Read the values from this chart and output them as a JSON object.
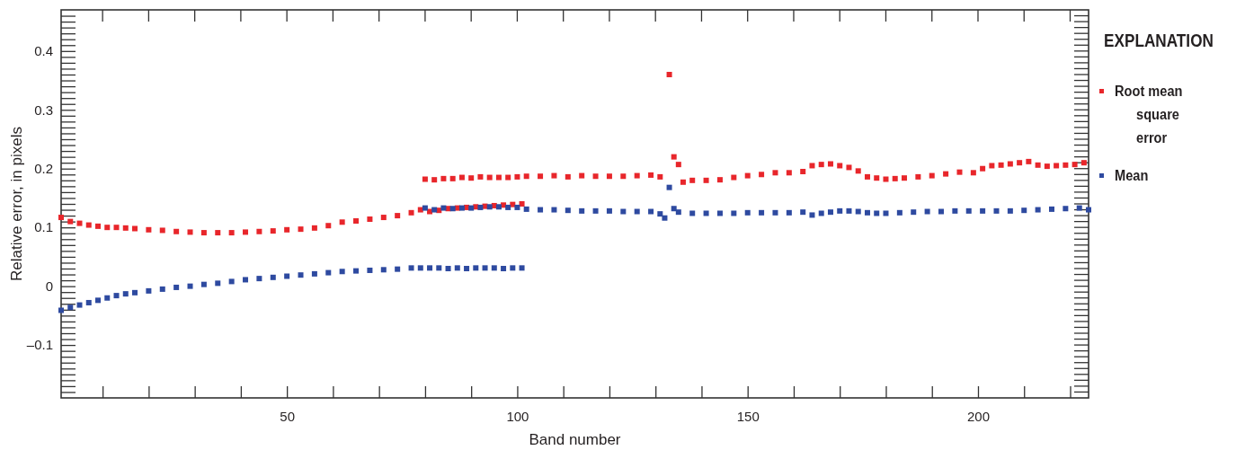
{
  "chart_data": {
    "type": "scatter",
    "xlabel": "Band number",
    "ylabel": "Relative error, in pixels",
    "legend_title": "EXPLANATION",
    "legend": "right",
    "marker": "square",
    "grid": false,
    "xlim": [
      1,
      224
    ],
    "ylim": [
      -0.19,
      0.47
    ],
    "xticks": [
      {
        "value": 10,
        "label": null
      },
      {
        "value": 20,
        "label": null
      },
      {
        "value": 30,
        "label": null
      },
      {
        "value": 40,
        "label": null
      },
      50,
      {
        "value": 60,
        "label": null
      },
      {
        "value": 70,
        "label": null
      },
      {
        "value": 80,
        "label": null
      },
      {
        "value": 90,
        "label": null
      },
      100,
      {
        "value": 110,
        "label": null
      },
      {
        "value": 120,
        "label": null
      },
      {
        "value": 130,
        "label": null
      },
      {
        "value": 140,
        "label": null
      },
      150,
      {
        "value": 160,
        "label": null
      },
      {
        "value": 170,
        "label": null
      },
      {
        "value": 180,
        "label": null
      },
      {
        "value": 190,
        "label": null
      },
      200,
      {
        "value": 210,
        "label": null
      },
      {
        "value": 220,
        "label": null
      }
    ],
    "yticks": [
      {
        "value": -0.18,
        "label": null
      },
      {
        "value": -0.17,
        "label": null
      },
      {
        "value": -0.16,
        "label": null
      },
      {
        "value": -0.15,
        "label": null
      },
      {
        "value": -0.14,
        "label": null
      },
      {
        "value": -0.13,
        "label": null
      },
      {
        "value": -0.12,
        "label": null
      },
      {
        "value": -0.11,
        "label": null
      },
      {
        "value": -0.1,
        "label": "–0.1"
      },
      {
        "value": -0.09,
        "label": null
      },
      {
        "value": -0.08,
        "label": null
      },
      {
        "value": -0.07,
        "label": null
      },
      {
        "value": -0.06,
        "label": null
      },
      {
        "value": -0.05,
        "label": null
      },
      {
        "value": -0.04,
        "label": null
      },
      {
        "value": -0.03,
        "label": null
      },
      {
        "value": -0.02,
        "label": null
      },
      {
        "value": -0.01,
        "label": null
      },
      0,
      {
        "value": 0.01,
        "label": null
      },
      {
        "value": 0.02,
        "label": null
      },
      {
        "value": 0.03,
        "label": null
      },
      {
        "value": 0.04,
        "label": null
      },
      {
        "value": 0.05,
        "label": null
      },
      {
        "value": 0.06,
        "label": null
      },
      {
        "value": 0.07,
        "label": null
      },
      {
        "value": 0.08,
        "label": null
      },
      {
        "value": 0.09,
        "label": null
      },
      0.1,
      {
        "value": 0.11,
        "label": null
      },
      {
        "value": 0.12,
        "label": null
      },
      {
        "value": 0.13,
        "label": null
      },
      {
        "value": 0.14,
        "label": null
      },
      {
        "value": 0.15,
        "label": null
      },
      {
        "value": 0.16,
        "label": null
      },
      {
        "value": 0.17,
        "label": null
      },
      {
        "value": 0.18,
        "label": null
      },
      {
        "value": 0.19,
        "label": null
      },
      0.2,
      {
        "value": 0.21,
        "label": null
      },
      {
        "value": 0.22,
        "label": null
      },
      {
        "value": 0.23,
        "label": null
      },
      {
        "value": 0.24,
        "label": null
      },
      {
        "value": 0.25,
        "label": null
      },
      {
        "value": 0.26,
        "label": null
      },
      {
        "value": 0.27,
        "label": null
      },
      {
        "value": 0.28,
        "label": null
      },
      {
        "value": 0.29,
        "label": null
      },
      0.3,
      {
        "value": 0.31,
        "label": null
      },
      {
        "value": 0.32,
        "label": null
      },
      {
        "value": 0.33,
        "label": null
      },
      {
        "value": 0.34,
        "label": null
      },
      {
        "value": 0.35,
        "label": null
      },
      {
        "value": 0.36,
        "label": null
      },
      {
        "value": 0.37,
        "label": null
      },
      {
        "value": 0.38,
        "label": null
      },
      {
        "value": 0.39,
        "label": null
      },
      0.4,
      {
        "value": 0.41,
        "label": null
      },
      {
        "value": 0.42,
        "label": null
      },
      {
        "value": 0.43,
        "label": null
      },
      {
        "value": 0.44,
        "label": null
      },
      {
        "value": 0.45,
        "label": null
      },
      {
        "value": 0.46,
        "label": null
      }
    ],
    "series": [
      {
        "name": "Root mean square error",
        "color": "#e8262b",
        "x": [
          1,
          3,
          5,
          7,
          9,
          11,
          13,
          15,
          17,
          20,
          23,
          26,
          29,
          32,
          35,
          38,
          41,
          44,
          47,
          50,
          53,
          56,
          59,
          62,
          65,
          68,
          71,
          74,
          77,
          79,
          80,
          82,
          84,
          86,
          88,
          90,
          92,
          94,
          96,
          98,
          100,
          81,
          83,
          85,
          87,
          89,
          91,
          93,
          95,
          97,
          99,
          101,
          102,
          105,
          108,
          111,
          114,
          117,
          120,
          123,
          126,
          129,
          131,
          133,
          134,
          135,
          136,
          138,
          141,
          144,
          147,
          150,
          153,
          156,
          159,
          162,
          164,
          166,
          168,
          170,
          172,
          174,
          176,
          178,
          180,
          182,
          184,
          187,
          190,
          193,
          196,
          199,
          201,
          203,
          205,
          207,
          209,
          211,
          213,
          215,
          217,
          219,
          221,
          223
        ],
        "values": [
          0.117,
          0.11,
          0.107,
          0.104,
          0.102,
          0.1,
          0.1,
          0.099,
          0.098,
          0.096,
          0.095,
          0.093,
          0.092,
          0.091,
          0.091,
          0.091,
          0.092,
          0.093,
          0.094,
          0.096,
          0.097,
          0.099,
          0.103,
          0.109,
          0.111,
          0.114,
          0.117,
          0.12,
          0.125,
          0.13,
          0.182,
          0.181,
          0.183,
          0.183,
          0.185,
          0.184,
          0.186,
          0.185,
          0.185,
          0.185,
          0.186,
          0.127,
          0.129,
          0.132,
          0.133,
          0.134,
          0.135,
          0.136,
          0.137,
          0.138,
          0.139,
          0.14,
          0.187,
          0.187,
          0.188,
          0.186,
          0.188,
          0.187,
          0.187,
          0.187,
          0.188,
          0.189,
          0.186,
          0.36,
          0.22,
          0.207,
          0.177,
          0.18,
          0.18,
          0.181,
          0.185,
          0.188,
          0.19,
          0.193,
          0.193,
          0.195,
          0.205,
          0.207,
          0.208,
          0.205,
          0.202,
          0.196,
          0.186,
          0.184,
          0.182,
          0.183,
          0.184,
          0.186,
          0.188,
          0.191,
          0.194,
          0.193,
          0.2,
          0.205,
          0.206,
          0.208,
          0.21,
          0.212,
          0.206,
          0.204,
          0.205,
          0.206,
          0.207,
          0.21
        ]
      },
      {
        "name": "Mean",
        "color": "#2e4aa0",
        "x": [
          1,
          3,
          5,
          7,
          9,
          11,
          13,
          15,
          17,
          20,
          23,
          26,
          29,
          32,
          35,
          38,
          41,
          44,
          47,
          50,
          53,
          56,
          59,
          62,
          65,
          68,
          71,
          74,
          77,
          79,
          81,
          83,
          85,
          87,
          89,
          91,
          93,
          95,
          97,
          99,
          101,
          80,
          82,
          84,
          86,
          88,
          90,
          92,
          94,
          96,
          98,
          100,
          102,
          105,
          108,
          111,
          114,
          117,
          120,
          123,
          126,
          129,
          131,
          132,
          133,
          134,
          135,
          138,
          141,
          144,
          147,
          150,
          153,
          156,
          159,
          162,
          164,
          166,
          168,
          170,
          172,
          174,
          176,
          178,
          180,
          183,
          186,
          189,
          192,
          195,
          198,
          201,
          204,
          207,
          210,
          213,
          216,
          219,
          222,
          224
        ],
        "values": [
          -0.041,
          -0.036,
          -0.032,
          -0.028,
          -0.024,
          -0.02,
          -0.016,
          -0.013,
          -0.011,
          -0.008,
          -0.005,
          -0.002,
          0.0,
          0.003,
          0.005,
          0.008,
          0.011,
          0.013,
          0.015,
          0.017,
          0.019,
          0.021,
          0.023,
          0.025,
          0.026,
          0.027,
          0.028,
          0.029,
          0.031,
          0.031,
          0.031,
          0.031,
          0.03,
          0.031,
          0.03,
          0.031,
          0.031,
          0.031,
          0.03,
          0.031,
          0.031,
          0.133,
          0.13,
          0.133,
          0.132,
          0.133,
          0.133,
          0.134,
          0.135,
          0.135,
          0.134,
          0.134,
          0.131,
          0.13,
          0.13,
          0.129,
          0.128,
          0.128,
          0.128,
          0.127,
          0.127,
          0.127,
          0.123,
          0.116,
          0.168,
          0.132,
          0.126,
          0.124,
          0.124,
          0.124,
          0.124,
          0.125,
          0.125,
          0.125,
          0.125,
          0.126,
          0.121,
          0.124,
          0.126,
          0.128,
          0.128,
          0.127,
          0.125,
          0.124,
          0.124,
          0.125,
          0.126,
          0.127,
          0.127,
          0.128,
          0.128,
          0.128,
          0.128,
          0.128,
          0.129,
          0.13,
          0.131,
          0.132,
          0.133,
          0.13
        ]
      }
    ]
  }
}
